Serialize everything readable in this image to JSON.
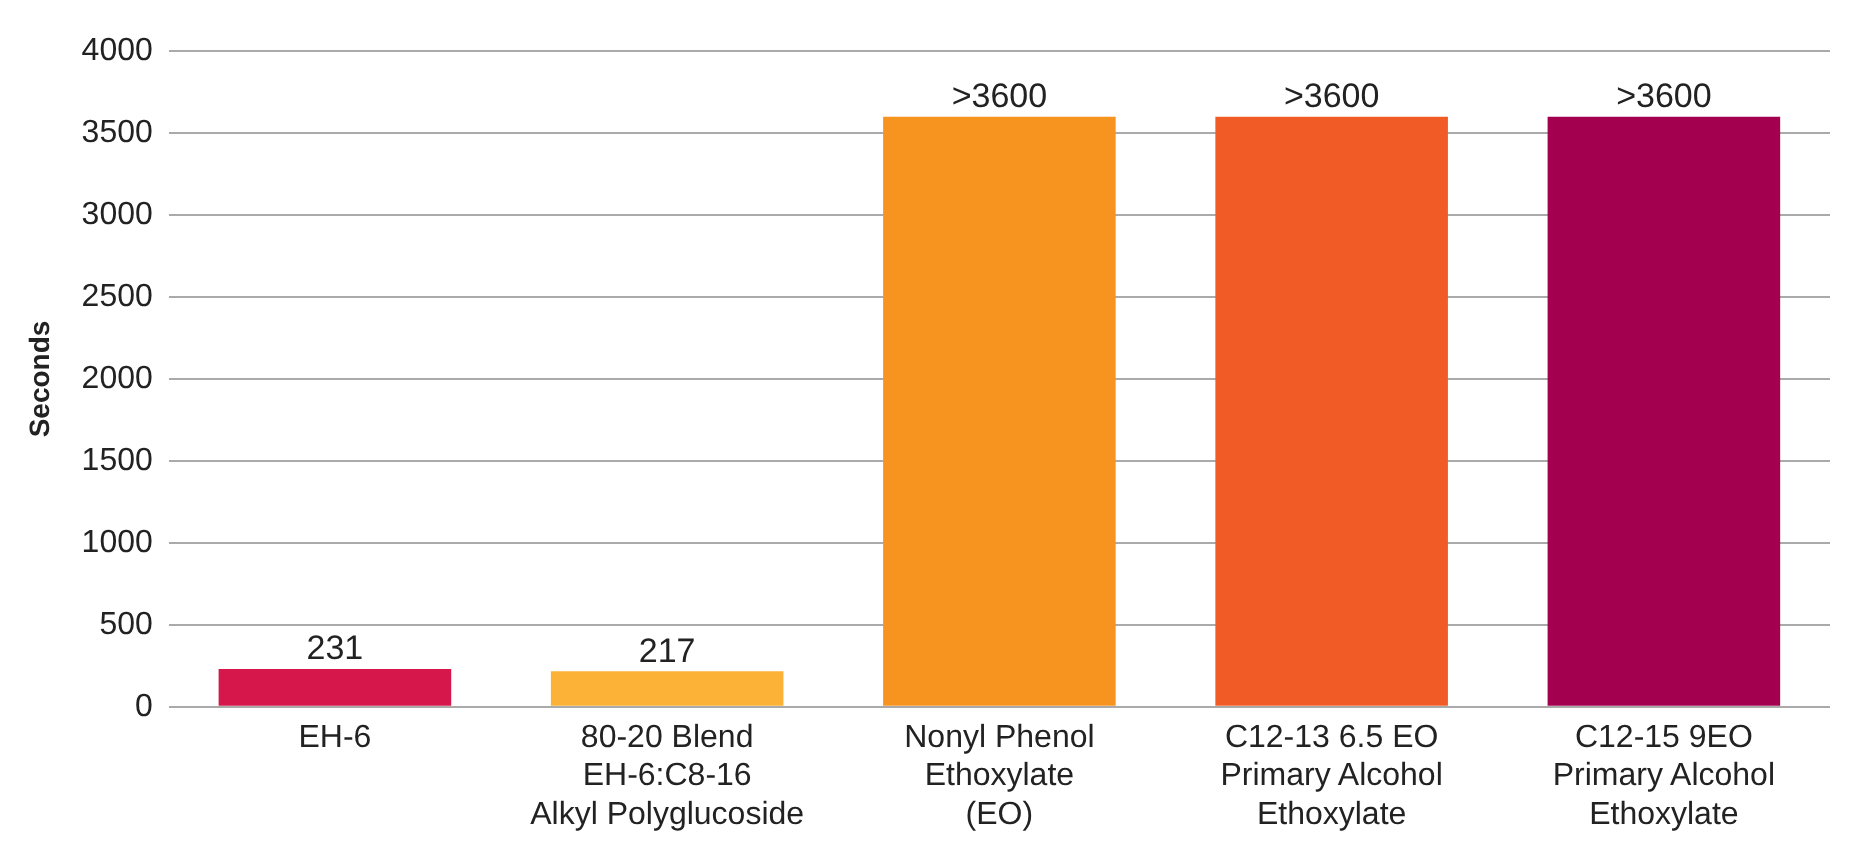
{
  "chart_data": {
    "type": "bar",
    "ylabel": "Seconds",
    "categories": [
      "EH-6",
      "80-20 Blend\nEH-6:C8-16\nAlkyl Polyglucoside",
      "Nonyl Phenol\nEthoxylate\n(EO)",
      "C12-13 6.5 EO\nPrimary Alcohol\nEthoxylate",
      "C12-15 9EO\nPrimary Alcohol\nEthoxylate"
    ],
    "values": [
      231,
      217,
      3600,
      3600,
      3600
    ],
    "value_labels": [
      "231",
      "217",
      ">3600",
      ">3600",
      ">3600"
    ],
    "colors": [
      "#d5174c",
      "#fbb236",
      "#f7941f",
      "#f15c26",
      "#a3004f"
    ],
    "ylim": [
      0,
      4000
    ],
    "yticks": [
      0,
      500,
      1000,
      1500,
      2000,
      2500,
      3000,
      3500,
      4000
    ],
    "grid": "y",
    "legend": false
  }
}
